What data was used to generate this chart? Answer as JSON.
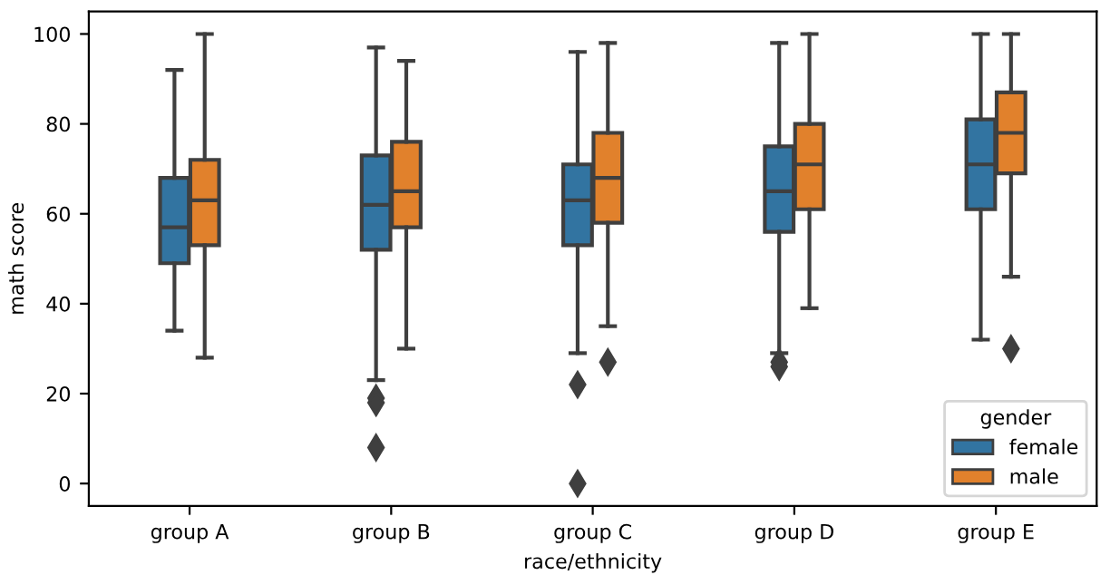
{
  "chart_data": {
    "type": "box",
    "xlabel": "race/ethnicity",
    "ylabel": "math score",
    "legend_title": "gender",
    "legend": "bottom right",
    "grid": false,
    "marker": "diamond",
    "categories": [
      "group A",
      "group B",
      "group C",
      "group D",
      "group E"
    ],
    "ylim": [
      -5,
      105
    ],
    "yticks": [
      0,
      20,
      40,
      60,
      80,
      100
    ],
    "series": [
      {
        "name": "female",
        "color": "#3274a1",
        "boxes": [
          {
            "low": 34,
            "q1": 49,
            "median": 57,
            "q3": 68,
            "high": 92
          },
          {
            "low": 23,
            "q1": 52,
            "median": 62,
            "q3": 73,
            "high": 97,
            "outliers": [
              19,
              18,
              8
            ]
          },
          {
            "low": 29,
            "q1": 53,
            "median": 63,
            "q3": 71,
            "high": 96,
            "outliers": [
              22,
              0
            ]
          },
          {
            "low": 29,
            "q1": 56,
            "median": 65,
            "q3": 75,
            "high": 98,
            "outliers": [
              27,
              26
            ]
          },
          {
            "low": 32,
            "q1": 61,
            "median": 71,
            "q3": 81,
            "high": 100
          }
        ]
      },
      {
        "name": "male",
        "color": "#e1812c",
        "boxes": [
          {
            "low": 28,
            "q1": 53,
            "median": 63,
            "q3": 72,
            "high": 100
          },
          {
            "low": 30,
            "q1": 57,
            "median": 65,
            "q3": 76,
            "high": 94
          },
          {
            "low": 35,
            "q1": 58,
            "median": 68,
            "q3": 78,
            "high": 98,
            "outliers": [
              27
            ]
          },
          {
            "low": 39,
            "q1": 61,
            "median": 71,
            "q3": 80,
            "high": 100
          },
          {
            "low": 46,
            "q1": 69,
            "median": 78,
            "q3": 87,
            "high": 100,
            "outliers": [
              30
            ]
          }
        ]
      }
    ]
  }
}
